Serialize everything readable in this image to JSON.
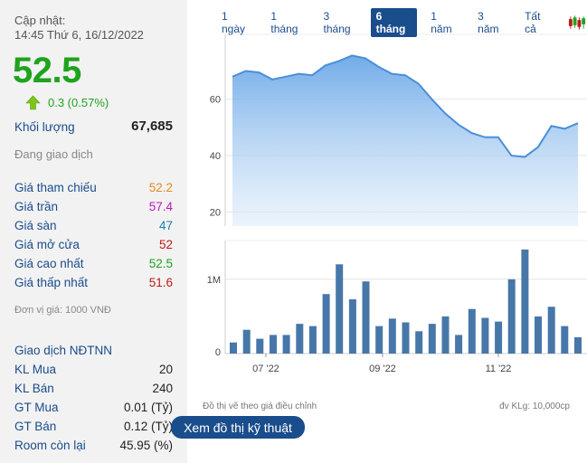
{
  "update": {
    "label": "Cập nhật:",
    "time": "14:45 Thứ 6, 16/12/2022"
  },
  "price": "52.5",
  "change": "0.3 (0.57%)",
  "volume": {
    "label": "Khối lượng",
    "value": "67,685"
  },
  "status": "Đang giao dịch",
  "prices": [
    {
      "label": "Giá tham chiếu",
      "value": "52.2",
      "color": "#e88a1a"
    },
    {
      "label": "Giá trần",
      "value": "57.4",
      "color": "#c214c2"
    },
    {
      "label": "Giá sàn",
      "value": "47",
      "color": "#1a7fb0"
    },
    {
      "label": "Giá mở cửa",
      "value": "52",
      "color": "#c01818"
    },
    {
      "label": "Giá cao nhất",
      "value": "52.5",
      "color": "#1ea31e"
    },
    {
      "label": "Giá thấp nhất",
      "value": "51.6",
      "color": "#c01818"
    }
  ],
  "unit_note": "Đơn vị giá: 1000 VNĐ",
  "foreign": {
    "title": "Giao dịch NĐTNN",
    "rows": [
      {
        "label": "KL Mua",
        "value": "20"
      },
      {
        "label": "KL Bán",
        "value": "240"
      },
      {
        "label": "GT Mua",
        "value": "0.01 (Tỷ)"
      },
      {
        "label": "GT Bán",
        "value": "0.12 (Tỷ)"
      },
      {
        "label": "Room còn lại",
        "value": "45.95 (%)"
      }
    ]
  },
  "tabs": [
    "1 ngày",
    "1 tháng",
    "3 tháng",
    "6 tháng",
    "1 năm",
    "3 năm",
    "Tất cả"
  ],
  "active_tab": "6 tháng",
  "footer_left": "Đồ thị vẽ theo giá điều chỉnh",
  "footer_right": "đv KLg: 10,000cp",
  "tech_button": "Xem đồ thị kỹ thuật",
  "chart_data": [
    {
      "type": "area",
      "y_ticks": [
        "60",
        "40",
        "20"
      ],
      "ylim": [
        15,
        83
      ],
      "values": [
        68,
        70,
        69.5,
        67,
        68,
        69,
        68.5,
        72,
        73.5,
        75.5,
        74.5,
        71.5,
        69,
        68.5,
        65.5,
        60,
        55,
        51,
        48,
        46.5,
        46.5,
        40,
        39.5,
        43,
        50.5,
        49.5,
        51.5
      ],
      "color": "#4a8fd8"
    },
    {
      "type": "bar",
      "y_ticks": [
        "1M",
        "0"
      ],
      "x_ticks": [
        "07 '22",
        "09 '22",
        "11 '22"
      ],
      "values": [
        0.15,
        0.32,
        0.2,
        0.25,
        0.25,
        0.4,
        0.37,
        0.8,
        1.2,
        0.73,
        0.97,
        0.37,
        0.47,
        0.42,
        0.3,
        0.4,
        0.5,
        0.25,
        0.6,
        0.48,
        0.43,
        1.0,
        1.4,
        0.5,
        0.63,
        0.37,
        0.22
      ],
      "color": "#4777a8"
    }
  ]
}
